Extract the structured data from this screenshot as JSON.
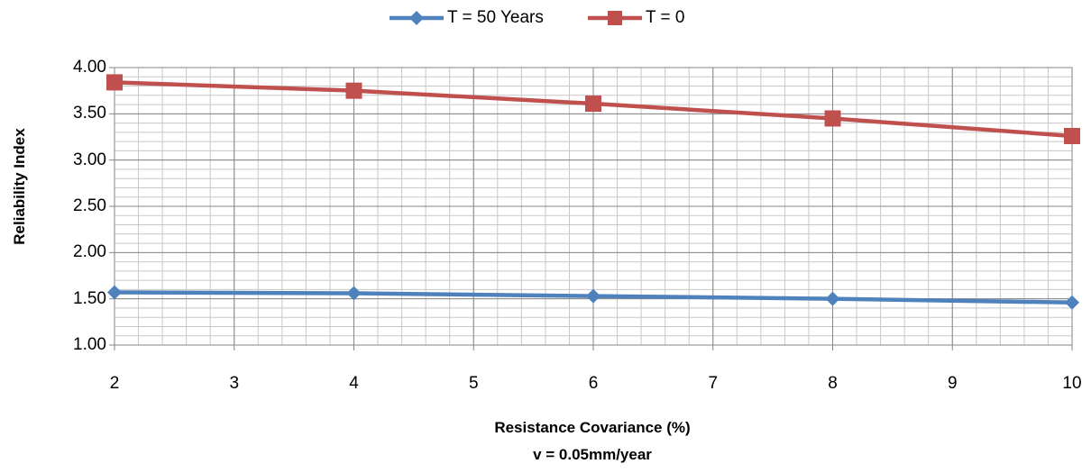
{
  "chart_data": {
    "type": "line",
    "x": [
      2,
      4,
      6,
      8,
      10
    ],
    "series": [
      {
        "name": "T = 50 Years",
        "values": [
          1.57,
          1.56,
          1.53,
          1.5,
          1.46
        ],
        "color": "#4F81BD",
        "marker": "diamond"
      },
      {
        "name": "T = 0",
        "values": [
          3.84,
          3.75,
          3.61,
          3.45,
          3.26
        ],
        "color": "#C0504D",
        "marker": "square"
      }
    ],
    "xlabel": "Resistance Covariance (%)",
    "subtitle": "v = 0.05mm/year",
    "ylabel": "Reliability Index",
    "xlim": [
      2,
      10
    ],
    "ylim": [
      1.0,
      4.0
    ],
    "x_ticks": [
      "2",
      "3",
      "4",
      "5",
      "6",
      "7",
      "8",
      "9",
      "10"
    ],
    "y_ticks": [
      "1.00",
      "1.50",
      "2.00",
      "2.50",
      "3.00",
      "3.50",
      "4.00"
    ],
    "grid": true,
    "legend_position": "top"
  }
}
